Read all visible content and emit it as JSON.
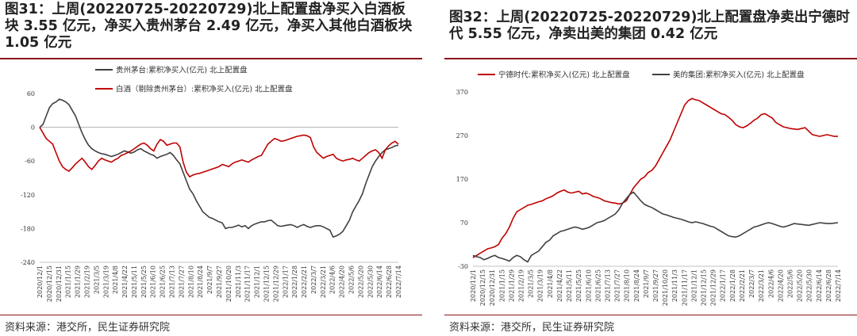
{
  "panels": [
    {
      "title": "图31：上周(20220725-20220729)北上配置盘净买入白酒板块 3.55 亿元，净买入贵州茅台 2.49 亿元，净买入其他白酒板块 1.05 亿元",
      "source": "资料来源：港交所，民生证券研究院"
    },
    {
      "title": "图32：上周(20220725-20220729)北上配置盘净卖出宁德时代 5.55 亿元，净卖出美的集团 0.42 亿元",
      "source": "资料来源：港交所，民生证券研究院"
    }
  ],
  "chart_data": [
    {
      "type": "line",
      "ylim": [
        -240,
        60
      ],
      "yticks": [
        60,
        0,
        -60,
        -120,
        -180,
        -240
      ],
      "x_tick_labels": [
        "2020/12/1",
        "2020/12/15",
        "2020/12/31",
        "2021/1/15",
        "2021/1/29",
        "2021/2/19",
        "2021/3/5",
        "2021/3/19",
        "2021/4/8",
        "2021/4/22",
        "2021/5/11",
        "2021/5/25",
        "2021/6/10",
        "2021/6/25",
        "2021/7/13",
        "2021/7/27",
        "2021/8/10",
        "2021/8/24",
        "2021/9/7",
        "2021/9/27",
        "2021/10/20",
        "2021/11/3",
        "2021/11/17",
        "2021/12/1",
        "2021/12/15",
        "2021/12/29",
        "2022/1/17",
        "2022/1/28",
        "2022/2/21",
        "2022/3/7",
        "2022/3/21",
        "2022/4/6",
        "2022/4/20",
        "2022/5/6",
        "2022/5/20",
        "2022/5/30",
        "2022/6/14",
        "2022/6/28",
        "2022/7/14"
      ],
      "series": [
        {
          "name": "贵州茅台:累积净买入(亿元) 北上配置盘",
          "color": "#404040",
          "values": [
            0,
            5,
            20,
            35,
            42,
            45,
            50,
            48,
            45,
            40,
            30,
            20,
            5,
            -10,
            -22,
            -32,
            -38,
            -42,
            -45,
            -47,
            -48,
            -50,
            -52,
            -50,
            -48,
            -45,
            -42,
            -44,
            -46,
            -44,
            -40,
            -38,
            -42,
            -45,
            -48,
            -50,
            -55,
            -52,
            -50,
            -48,
            -45,
            -50,
            -58,
            -65,
            -80,
            -95,
            -110,
            -118,
            -130,
            -140,
            -150,
            -155,
            -160,
            -162,
            -165,
            -168,
            -170,
            -180,
            -178,
            -178,
            -176,
            -174,
            -177,
            -175,
            -180,
            -175,
            -172,
            -170,
            -168,
            -168,
            -166,
            -165,
            -170,
            -175,
            -176,
            -175,
            -174,
            -173,
            -175,
            -178,
            -175,
            -173,
            -176,
            -178,
            -176,
            -175,
            -175,
            -177,
            -180,
            -183,
            -195,
            -193,
            -190,
            -185,
            -175,
            -165,
            -150,
            -140,
            -130,
            -118,
            -100,
            -85,
            -70,
            -60,
            -52,
            -45,
            -40,
            -38,
            -36,
            -33,
            -32
          ]
        },
        {
          "name": "白酒（剔除贵州茅台）:累积净买入(亿元) 北上配置盘",
          "color": "#c00000",
          "values": [
            0,
            -10,
            -20,
            -25,
            -30,
            -45,
            -60,
            -70,
            -75,
            -78,
            -72,
            -65,
            -60,
            -55,
            -62,
            -70,
            -75,
            -68,
            -60,
            -55,
            -58,
            -60,
            -62,
            -58,
            -55,
            -50,
            -48,
            -45,
            -42,
            -38,
            -34,
            -30,
            -28,
            -32,
            -38,
            -42,
            -30,
            -22,
            -25,
            -32,
            -30,
            -28,
            -28,
            -35,
            -62,
            -80,
            -88,
            -85,
            -83,
            -82,
            -80,
            -78,
            -76,
            -74,
            -72,
            -70,
            -66,
            -68,
            -70,
            -65,
            -62,
            -60,
            -58,
            -60,
            -62,
            -58,
            -55,
            -52,
            -50,
            -40,
            -30,
            -25,
            -20,
            -22,
            -25,
            -24,
            -22,
            -20,
            -18,
            -16,
            -15,
            -14,
            -15,
            -18,
            -35,
            -45,
            -50,
            -55,
            -52,
            -50,
            -48,
            -55,
            -58,
            -60,
            -58,
            -57,
            -55,
            -58,
            -60,
            -55,
            -50,
            -45,
            -42,
            -40,
            -45,
            -55,
            -40,
            -33,
            -28,
            -25,
            -30
          ]
        }
      ]
    },
    {
      "type": "line",
      "ylim": [
        -30,
        370
      ],
      "yticks": [
        370,
        270,
        170,
        70,
        -30
      ],
      "x_tick_labels": [
        "2020/12/1",
        "2020/12/15",
        "2020/12/31",
        "2021/1/15",
        "2021/1/29",
        "2021/2/19",
        "2021/3/5",
        "2021/3/19",
        "2021/4/8",
        "2021/4/22",
        "2021/5/11",
        "2021/5/25",
        "2021/6/10",
        "2021/6/25",
        "2021/7/13",
        "2021/7/27",
        "2021/8/10",
        "2021/8/24",
        "2021/9/7",
        "2021/9/27",
        "2021/10/20",
        "2021/11/3",
        "2021/11/17",
        "2021/12/1",
        "2021/12/15",
        "2021/12/29",
        "2022/1/17",
        "2022/1/28",
        "2022/2/21",
        "2022/3/7",
        "2022/3/21",
        "2022/4/6",
        "2022/4/20",
        "2022/5/6",
        "2022/5/20",
        "2022/5/30",
        "2022/6/14",
        "2022/6/28",
        "2022/7/14"
      ],
      "series": [
        {
          "name": "宁德时代:累积净买入(亿元) 北上配置盘",
          "color": "#c00000",
          "values": [
            -10,
            -5,
            0,
            5,
            10,
            12,
            15,
            20,
            35,
            45,
            60,
            80,
            95,
            100,
            105,
            110,
            112,
            115,
            118,
            120,
            125,
            128,
            132,
            138,
            142,
            145,
            140,
            138,
            140,
            142,
            136,
            138,
            135,
            130,
            128,
            125,
            120,
            118,
            116,
            115,
            113,
            115,
            120,
            135,
            150,
            160,
            170,
            175,
            185,
            190,
            200,
            215,
            230,
            245,
            260,
            280,
            300,
            320,
            340,
            350,
            355,
            352,
            350,
            345,
            340,
            335,
            330,
            325,
            320,
            318,
            312,
            305,
            295,
            290,
            288,
            292,
            298,
            305,
            310,
            318,
            320,
            315,
            310,
            300,
            295,
            290,
            288,
            286,
            285,
            284,
            286,
            288,
            280,
            272,
            270,
            268,
            270,
            272,
            270,
            268,
            268
          ]
        },
        {
          "name": "美的集团:累积净买入(亿元) 北上配置盘",
          "color": "#404040",
          "values": [
            -5,
            -8,
            -10,
            -15,
            -12,
            -8,
            -5,
            -10,
            -12,
            -15,
            -18,
            -10,
            -5,
            -8,
            -15,
            -20,
            -5,
            0,
            5,
            15,
            25,
            30,
            40,
            45,
            50,
            52,
            55,
            58,
            60,
            58,
            55,
            57,
            60,
            65,
            70,
            72,
            75,
            80,
            85,
            90,
            100,
            115,
            125,
            135,
            140,
            130,
            120,
            112,
            108,
            105,
            100,
            95,
            90,
            88,
            85,
            82,
            80,
            78,
            75,
            72,
            70,
            72,
            70,
            68,
            65,
            62,
            60,
            55,
            50,
            45,
            40,
            38,
            37,
            40,
            45,
            50,
            55,
            60,
            62,
            65,
            68,
            70,
            68,
            65,
            62,
            60,
            62,
            65,
            68,
            67,
            66,
            65,
            64,
            66,
            68,
            70,
            69,
            68,
            68,
            69,
            70
          ]
        }
      ]
    }
  ]
}
